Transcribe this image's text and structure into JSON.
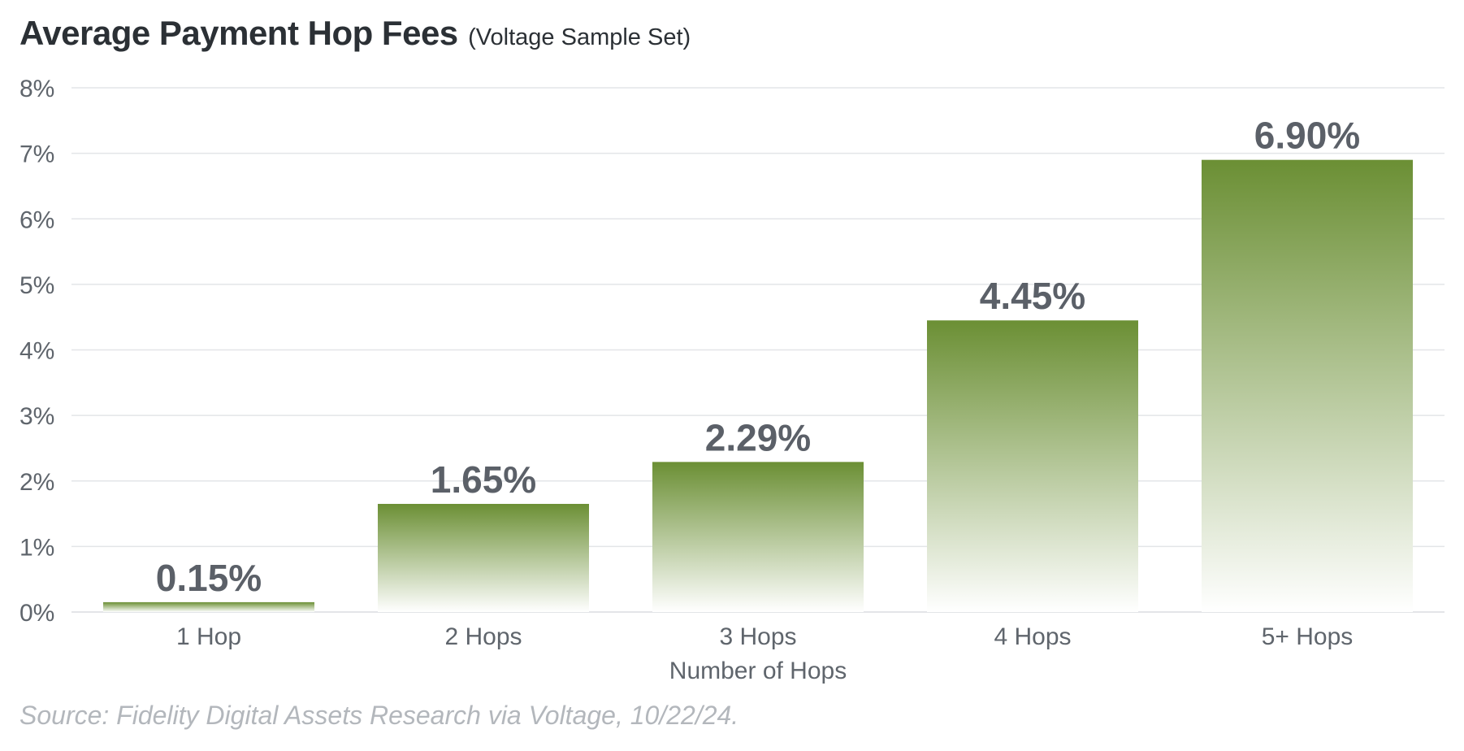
{
  "title": "Average Payment Hop Fees",
  "subtitle": "(Voltage Sample Set)",
  "source": "Source: Fidelity Digital Assets Research via Voltage, 10/22/24.",
  "colors": {
    "bar_top": "#6b8f34",
    "bar_bottom": "#ffffff",
    "grid": "#e3e5e8",
    "text": "#5f656c"
  },
  "chart_data": {
    "type": "bar",
    "categories": [
      "1 Hop",
      "2 Hops",
      "3 Hops",
      "4 Hops",
      "5+ Hops"
    ],
    "values": [
      0.15,
      1.65,
      2.29,
      4.45,
      6.9
    ],
    "data_labels": [
      "0.15%",
      "1.65%",
      "2.29%",
      "4.45%",
      "6.90%"
    ],
    "title": "Average Payment Hop Fees",
    "xlabel": "Number of Hops",
    "ylabel": "",
    "ylim": [
      0,
      8
    ],
    "yticks": [
      0,
      1,
      2,
      3,
      4,
      5,
      6,
      7,
      8
    ],
    "ytick_labels": [
      "0%",
      "1%",
      "2%",
      "3%",
      "4%",
      "5%",
      "6%",
      "7%",
      "8%"
    ],
    "grid": true,
    "legend": "none"
  }
}
